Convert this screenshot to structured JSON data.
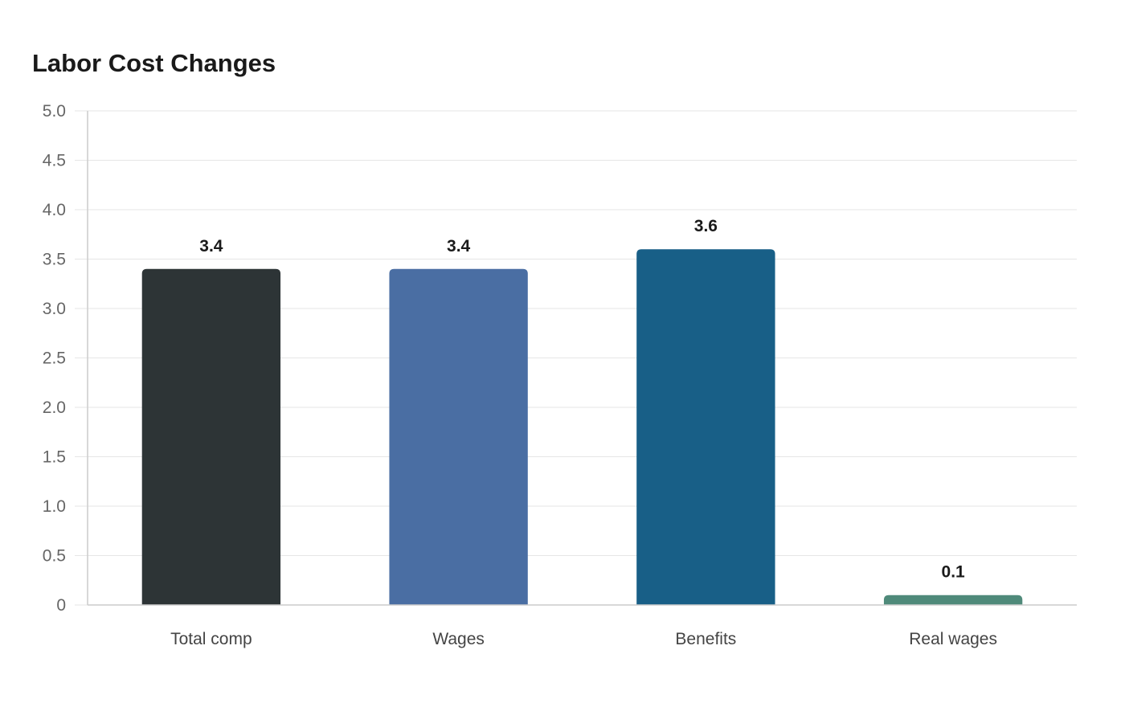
{
  "chart_data": {
    "type": "bar",
    "title": "Labor Cost Changes",
    "xlabel": "",
    "ylabel": "",
    "categories": [
      "Total comp",
      "Wages",
      "Benefits",
      "Real wages"
    ],
    "values": [
      3.4,
      3.4,
      3.6,
      0.1
    ],
    "value_labels": [
      "3.4",
      "3.4",
      "3.6",
      "0.1"
    ],
    "colors": [
      "#2d3436",
      "#4a6ea3",
      "#185f87",
      "#4f8a7a"
    ],
    "ylim": [
      0,
      5
    ],
    "yticks": [
      0,
      0.5,
      1,
      1.5,
      2,
      2.5,
      3,
      3.5,
      4,
      4.5,
      5
    ],
    "ytick_labels": [
      "0",
      "0.5",
      "1.0",
      "1.5",
      "2.0",
      "2.5",
      "3.0",
      "3.5",
      "4.0",
      "4.5",
      "5.0"
    ],
    "grid": true,
    "legend": "none"
  }
}
